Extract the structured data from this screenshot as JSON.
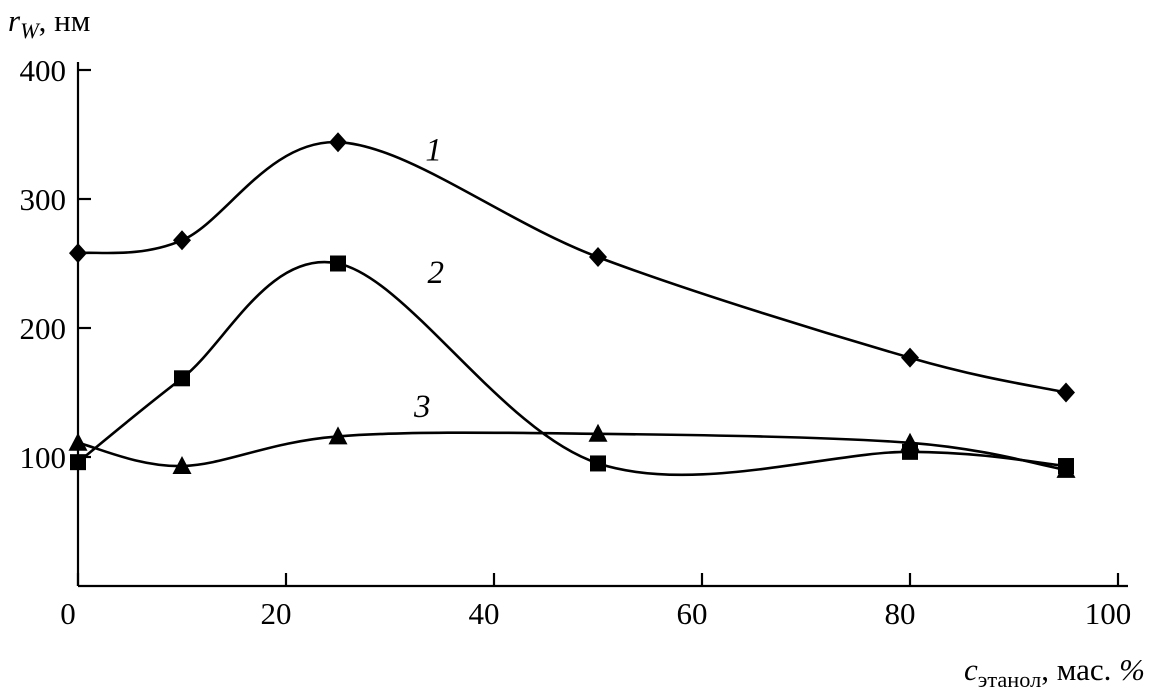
{
  "chart_data": {
    "type": "line",
    "title": "",
    "ylabel_var": "r",
    "ylabel_sub": "W",
    "ylabel_rest": ", нм",
    "xlabel_var": "c",
    "xlabel_sub": "этанол",
    "xlabel_rest": ", мас. ",
    "xlabel_pct": "%",
    "xlim": [
      0,
      100
    ],
    "ylim": [
      0,
      400
    ],
    "x_ticks": [
      0,
      20,
      40,
      60,
      80,
      100
    ],
    "y_ticks": [
      100,
      200,
      300,
      400
    ],
    "grid": false,
    "legend_position": "inline-curve-labels",
    "line_color": "#000000",
    "background": "#ffffff",
    "x": [
      0,
      10,
      25,
      50,
      80,
      95
    ],
    "series": [
      {
        "name": "1",
        "marker": "diamond",
        "values": [
          258,
          268,
          344,
          255,
          177,
          150
        ],
        "label_pos": {
          "x": 34.2,
          "y": 330
        }
      },
      {
        "name": "2",
        "marker": "square",
        "values": [
          96,
          161,
          250,
          95,
          104,
          93
        ],
        "label_pos": {
          "x": 34.4,
          "y": 235
        }
      },
      {
        "name": "3",
        "marker": "triangle",
        "values": [
          111,
          93,
          116,
          118,
          111,
          90
        ],
        "label_pos": {
          "x": 33.1,
          "y": 131
        }
      }
    ]
  }
}
